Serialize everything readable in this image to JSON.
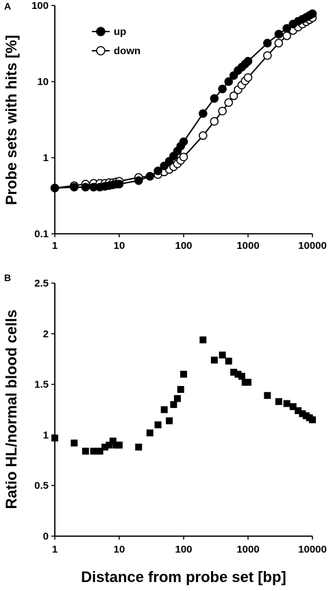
{
  "chart_data": [
    {
      "panel_label": "A",
      "type": "line",
      "title": "",
      "xlabel": "",
      "ylabel": "Probe sets with hits [%]",
      "x_scale": "log",
      "y_scale": "log",
      "xlim": [
        1,
        10000
      ],
      "ylim": [
        0.1,
        100
      ],
      "x_ticks": [
        "1",
        "10",
        "100",
        "1000",
        "10000"
      ],
      "y_ticks": [
        "0.1",
        "1",
        "10",
        "100"
      ],
      "grid": false,
      "legend_position": "top-left",
      "x": [
        1,
        2,
        3,
        4,
        5,
        6,
        7,
        8,
        9,
        10,
        20,
        30,
        40,
        50,
        60,
        70,
        80,
        90,
        100,
        200,
        300,
        400,
        500,
        600,
        700,
        800,
        900,
        1000,
        2000,
        3000,
        4000,
        5000,
        6000,
        7000,
        8000,
        9000,
        10000
      ],
      "series": [
        {
          "name": "up",
          "marker": "filled-circle",
          "color": "#000000",
          "values": [
            0.4,
            0.41,
            0.41,
            0.41,
            0.41,
            0.42,
            0.43,
            0.44,
            0.45,
            0.45,
            0.5,
            0.57,
            0.67,
            0.78,
            0.9,
            1.05,
            1.22,
            1.42,
            1.62,
            3.8,
            6.0,
            8.0,
            10.0,
            12.0,
            14.0,
            15.5,
            17.0,
            18.5,
            32.0,
            42.0,
            50.0,
            57.0,
            62.0,
            66.0,
            70.0,
            74.0,
            78.0
          ]
        },
        {
          "name": "down",
          "marker": "open-circle",
          "color": "#000000",
          "values": [
            0.4,
            0.43,
            0.45,
            0.46,
            0.46,
            0.46,
            0.47,
            0.47,
            0.48,
            0.49,
            0.55,
            0.57,
            0.6,
            0.65,
            0.7,
            0.76,
            0.83,
            0.92,
            1.02,
            1.95,
            3.0,
            4.1,
            5.3,
            6.5,
            7.8,
            9.0,
            10.2,
            11.3,
            22.0,
            32.0,
            40.0,
            47.0,
            52.0,
            57.0,
            61.0,
            65.0,
            69.0
          ]
        }
      ]
    },
    {
      "panel_label": "B",
      "type": "scatter",
      "title": "",
      "xlabel": "Distance from probe set [bp]",
      "ylabel": "Ratio HL/normal blood cells",
      "x_scale": "log",
      "xlim": [
        1,
        10000
      ],
      "ylim": [
        0,
        2.5
      ],
      "x_ticks": [
        "1",
        "10",
        "100",
        "1000",
        "10000"
      ],
      "y_ticks": [
        "0",
        "0.5",
        "1",
        "1.5",
        "2",
        "2.5"
      ],
      "grid": false,
      "series": [
        {
          "marker": "filled-square",
          "color": "#000000",
          "x": [
            1,
            2,
            3,
            4,
            5,
            6,
            7,
            8,
            9,
            10,
            20,
            30,
            40,
            50,
            60,
            70,
            80,
            90,
            100,
            200,
            300,
            400,
            500,
            600,
            700,
            800,
            900,
            1000,
            2000,
            3000,
            4000,
            5000,
            6000,
            7000,
            8000,
            9000,
            10000
          ],
          "values": [
            0.97,
            0.92,
            0.84,
            0.84,
            0.84,
            0.88,
            0.9,
            0.94,
            0.9,
            0.9,
            0.88,
            1.02,
            1.1,
            1.25,
            1.14,
            1.3,
            1.36,
            1.45,
            1.6,
            1.94,
            1.74,
            1.79,
            1.73,
            1.62,
            1.6,
            1.58,
            1.52,
            1.52,
            1.39,
            1.33,
            1.31,
            1.28,
            1.24,
            1.21,
            1.19,
            1.17,
            1.15
          ]
        }
      ]
    }
  ]
}
